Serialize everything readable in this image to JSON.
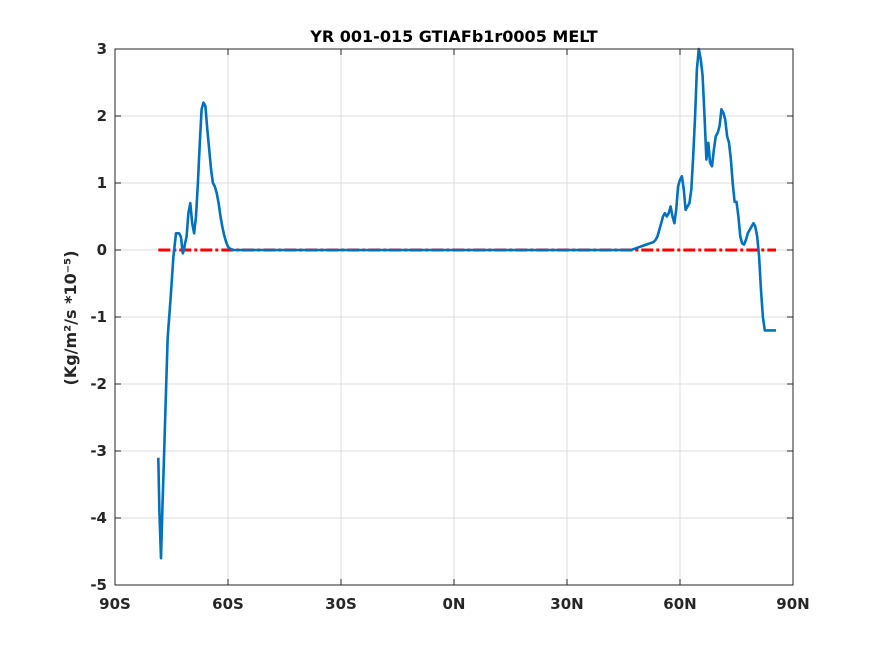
{
  "chart_data": {
    "type": "line",
    "title": "YR 001-015 GTIAFb1r0005 MELT",
    "xlabel": "",
    "ylabel": "(Kg/m²/s   *10⁻⁵)",
    "xlim": [
      -90,
      90
    ],
    "ylim": [
      -5,
      3
    ],
    "grid": true,
    "x_ticks": [
      -90,
      -60,
      -30,
      0,
      30,
      60,
      90
    ],
    "x_tick_labels": [
      "90S",
      "60S",
      "30S",
      "0N",
      "30N",
      "60N",
      "90N"
    ],
    "y_ticks": [
      -5,
      -4,
      -3,
      -2,
      -1,
      0,
      1,
      2,
      3
    ],
    "y_tick_labels": [
      "-5",
      "-4",
      "-3",
      "-2",
      "-1",
      "0",
      "1",
      "2",
      "3"
    ],
    "colors": {
      "series_line": "#0072bd",
      "zero_line": "#ff0000"
    },
    "series": [
      {
        "color": "#0072bd",
        "style": "solid",
        "x": [
          -78.5,
          -78.2,
          -77.8,
          -77.4,
          -77.0,
          -76.5,
          -76.0,
          -75.2,
          -74.5,
          -73.8,
          -73.0,
          -72.5,
          -72.0,
          -71.7,
          -71.4,
          -71.0,
          -70.5,
          -70.0,
          -69.5,
          -69.0,
          -68.5,
          -68.0,
          -67.5,
          -67.0,
          -66.5,
          -66.0,
          -65.5,
          -65.0,
          -64.5,
          -64.0,
          -63.5,
          -63.0,
          -62.5,
          -62.0,
          -61.5,
          -61.0,
          -60.5,
          -60.0,
          -59.5,
          -59.0,
          -58.5,
          -58.0,
          -57.5,
          -57.0,
          -56.5,
          -56.0,
          -55.0,
          -54.0,
          -53.0,
          -52.0,
          -50.0,
          -40.0,
          -30.0,
          -20.0,
          -10.0,
          0.0,
          10.0,
          20.0,
          30.0,
          40.0,
          45.0,
          47.0,
          48.0,
          49.0,
          50.0,
          51.0,
          52.0,
          53.0,
          53.5,
          54.0,
          54.5,
          55.0,
          55.5,
          56.0,
          56.5,
          57.0,
          57.5,
          58.0,
          58.5,
          59.0,
          59.5,
          60.0,
          60.5,
          61.0,
          61.5,
          62.0,
          62.5,
          63.0,
          63.5,
          64.0,
          64.5,
          65.0,
          65.5,
          66.0,
          66.5,
          67.0,
          67.5,
          68.0,
          68.5,
          69.0,
          69.5,
          70.0,
          70.5,
          71.0,
          71.5,
          72.0,
          72.5,
          73.0,
          73.5,
          74.0,
          74.5,
          75.0,
          75.5,
          76.0,
          76.5,
          77.0,
          77.5,
          78.0,
          78.5,
          79.0,
          79.5,
          80.0,
          80.5,
          81.0,
          81.5,
          82.0,
          82.5,
          83.0,
          83.5,
          84.0,
          84.5,
          85.0,
          85.5
        ],
        "y": [
          -3.1,
          -3.9,
          -4.6,
          -3.8,
          -3.1,
          -2.2,
          -1.3,
          -0.7,
          -0.1,
          0.25,
          0.25,
          0.2,
          -0.05,
          0.0,
          0.1,
          0.2,
          0.55,
          0.7,
          0.4,
          0.25,
          0.5,
          1.0,
          1.6,
          2.1,
          2.2,
          2.15,
          1.8,
          1.5,
          1.2,
          1.0,
          0.95,
          0.85,
          0.7,
          0.5,
          0.35,
          0.22,
          0.12,
          0.05,
          0.02,
          0.01,
          0.0,
          0.0,
          0.0,
          0.0,
          0.0,
          0.0,
          0.0,
          0.0,
          0.0,
          0.0,
          0.0,
          0.0,
          0.0,
          0.0,
          0.0,
          0.0,
          0.0,
          0.0,
          0.0,
          0.0,
          0.0,
          0.0,
          0.02,
          0.04,
          0.06,
          0.08,
          0.1,
          0.12,
          0.15,
          0.2,
          0.3,
          0.4,
          0.5,
          0.55,
          0.5,
          0.55,
          0.65,
          0.5,
          0.4,
          0.6,
          0.95,
          1.05,
          1.1,
          0.9,
          0.6,
          0.65,
          0.7,
          0.9,
          1.4,
          2.0,
          2.7,
          3.0,
          2.85,
          2.6,
          2.0,
          1.35,
          1.6,
          1.3,
          1.25,
          1.5,
          1.7,
          1.75,
          1.85,
          2.1,
          2.05,
          1.95,
          1.7,
          1.6,
          1.35,
          1.0,
          0.72,
          0.72,
          0.5,
          0.2,
          0.1,
          0.08,
          0.15,
          0.25,
          0.3,
          0.35,
          0.4,
          0.35,
          0.2,
          -0.1,
          -0.6,
          -1.0,
          -1.2,
          -1.2,
          -1.2,
          -1.2,
          -1.2,
          -1.2,
          -1.2
        ]
      },
      {
        "color": "#ff0000",
        "style": "dash-dot",
        "x": [
          -78.5,
          85.5
        ],
        "y": [
          0,
          0
        ]
      }
    ]
  }
}
